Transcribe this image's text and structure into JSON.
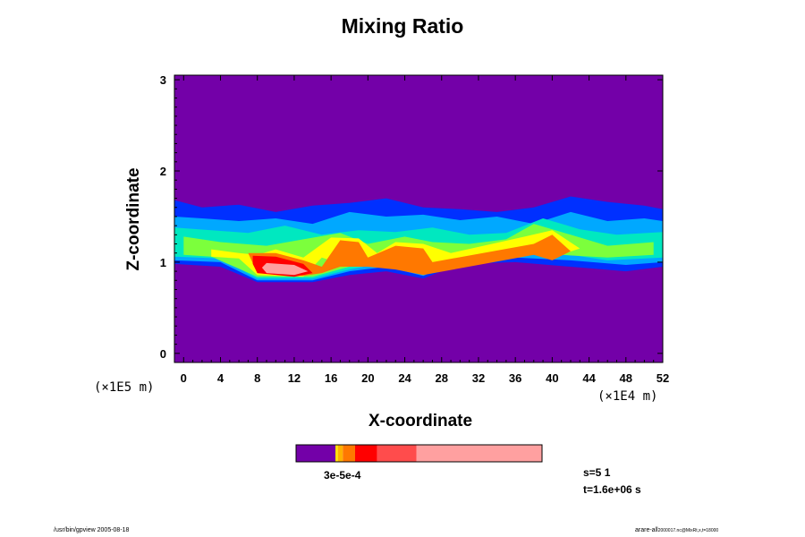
{
  "chart_data": {
    "type": "heatmap",
    "title": "Mixing Ratio",
    "xlabel": "X-coordinate",
    "ylabel": "Z-coordinate",
    "x_unit": "(×1E4 m)",
    "y_unit": "(×1E5 m)",
    "xlim": [
      -1,
      52
    ],
    "ylim": [
      -0.1,
      3.05
    ],
    "x_ticks": [
      "0",
      "4",
      "8",
      "12",
      "16",
      "20",
      "24",
      "28",
      "32",
      "36",
      "40",
      "44",
      "48",
      "52"
    ],
    "y_ticks": [
      "0",
      "1",
      "2",
      "3"
    ],
    "background_color": "#7300a8",
    "grid": false,
    "colorbar": {
      "levels_label": "3e-5e-4",
      "segments": [
        {
          "from": 0.0,
          "to": 0.16,
          "color": "#7300a8"
        },
        {
          "from": 0.16,
          "to": 0.17,
          "color": "#ffe000"
        },
        {
          "from": 0.17,
          "to": 0.19,
          "color": "#ffb000"
        },
        {
          "from": 0.19,
          "to": 0.24,
          "color": "#ff7800"
        },
        {
          "from": 0.24,
          "to": 0.33,
          "color": "#ff0000"
        },
        {
          "from": 0.33,
          "to": 0.49,
          "color": "#ff4c4c"
        },
        {
          "from": 0.49,
          "to": 1.0,
          "color": "#ffa0a0"
        }
      ]
    },
    "bands": [
      {
        "color": "#0030ff",
        "points": [
          [
            -1,
            1.68
          ],
          [
            2,
            1.6
          ],
          [
            6,
            1.63
          ],
          [
            10,
            1.55
          ],
          [
            14,
            1.62
          ],
          [
            18,
            1.65
          ],
          [
            22,
            1.7
          ],
          [
            26,
            1.6
          ],
          [
            30,
            1.58
          ],
          [
            34,
            1.55
          ],
          [
            38,
            1.6
          ],
          [
            42,
            1.72
          ],
          [
            46,
            1.66
          ],
          [
            50,
            1.62
          ],
          [
            52,
            1.58
          ],
          [
            52,
            0.95
          ],
          [
            48,
            0.9
          ],
          [
            42,
            0.95
          ],
          [
            36,
            1.0
          ],
          [
            30,
            0.98
          ],
          [
            26,
            0.82
          ],
          [
            22,
            0.9
          ],
          [
            18,
            0.86
          ],
          [
            14,
            0.78
          ],
          [
            8,
            0.78
          ],
          [
            4,
            0.95
          ],
          [
            -1,
            0.98
          ]
        ]
      },
      {
        "color": "#00a8ff",
        "points": [
          [
            -1,
            1.5
          ],
          [
            2,
            1.48
          ],
          [
            6,
            1.45
          ],
          [
            10,
            1.48
          ],
          [
            14,
            1.42
          ],
          [
            18,
            1.55
          ],
          [
            22,
            1.5
          ],
          [
            26,
            1.52
          ],
          [
            30,
            1.46
          ],
          [
            34,
            1.5
          ],
          [
            38,
            1.42
          ],
          [
            42,
            1.55
          ],
          [
            46,
            1.45
          ],
          [
            50,
            1.48
          ],
          [
            52,
            1.45
          ],
          [
            52,
            1.0
          ],
          [
            48,
            0.97
          ],
          [
            42,
            1.02
          ],
          [
            36,
            1.05
          ],
          [
            30,
            1.02
          ],
          [
            26,
            0.85
          ],
          [
            22,
            0.95
          ],
          [
            18,
            0.9
          ],
          [
            14,
            0.8
          ],
          [
            8,
            0.8
          ],
          [
            4,
            1.0
          ],
          [
            -1,
            1.02
          ]
        ]
      },
      {
        "color": "#00e8c0",
        "points": [
          [
            -1,
            1.38
          ],
          [
            3,
            1.35
          ],
          [
            7,
            1.32
          ],
          [
            11,
            1.4
          ],
          [
            15,
            1.3
          ],
          [
            19,
            1.35
          ],
          [
            23,
            1.33
          ],
          [
            27,
            1.38
          ],
          [
            31,
            1.3
          ],
          [
            35,
            1.32
          ],
          [
            39,
            1.48
          ],
          [
            43,
            1.36
          ],
          [
            47,
            1.3
          ],
          [
            52,
            1.33
          ],
          [
            52,
            1.05
          ],
          [
            46,
            1.02
          ],
          [
            42,
            1.08
          ],
          [
            36,
            1.1
          ],
          [
            30,
            1.08
          ],
          [
            26,
            0.86
          ],
          [
            22,
            1.0
          ],
          [
            18,
            0.92
          ],
          [
            14,
            0.82
          ],
          [
            8,
            0.82
          ],
          [
            4,
            1.04
          ],
          [
            -1,
            1.06
          ]
        ]
      },
      {
        "color": "#7cff3c",
        "points": [
          [
            0,
            1.28
          ],
          [
            4,
            1.22
          ],
          [
            9,
            1.18
          ],
          [
            13,
            1.25
          ],
          [
            17,
            1.32
          ],
          [
            20,
            1.2
          ],
          [
            24,
            1.28
          ],
          [
            27,
            1.22
          ],
          [
            31,
            1.2
          ],
          [
            35,
            1.25
          ],
          [
            38,
            1.42
          ],
          [
            42,
            1.3
          ],
          [
            46,
            1.18
          ],
          [
            51,
            1.22
          ],
          [
            51,
            1.08
          ],
          [
            46,
            1.05
          ],
          [
            41,
            1.08
          ],
          [
            38,
            1.15
          ],
          [
            34,
            1.12
          ],
          [
            30,
            1.1
          ],
          [
            26,
            0.88
          ],
          [
            22,
            1.02
          ],
          [
            18,
            0.95
          ],
          [
            14,
            0.84
          ],
          [
            8,
            0.84
          ],
          [
            3,
            1.06
          ],
          [
            0,
            1.08
          ]
        ]
      },
      {
        "color": "#ffff00",
        "points": [
          [
            3,
            1.14
          ],
          [
            6,
            1.1
          ],
          [
            8,
            1.08
          ],
          [
            10,
            1.14
          ],
          [
            13,
            1.05
          ],
          [
            16,
            1.27
          ],
          [
            19,
            1.26
          ],
          [
            21,
            1.1
          ],
          [
            23,
            1.22
          ],
          [
            26,
            1.2
          ],
          [
            29,
            1.1
          ],
          [
            37,
            1.28
          ],
          [
            40,
            1.35
          ],
          [
            43,
            1.15
          ],
          [
            40,
            1.05
          ],
          [
            37,
            1.12
          ],
          [
            29,
            1.02
          ],
          [
            26,
            0.86
          ],
          [
            23,
            0.95
          ],
          [
            20,
            0.98
          ],
          [
            18,
            0.95
          ],
          [
            15,
            1.05
          ],
          [
            13,
            0.84
          ],
          [
            8,
            0.86
          ],
          [
            6,
            1.04
          ],
          [
            3,
            1.06
          ]
        ]
      },
      {
        "color": "#ff7800",
        "points": [
          [
            7,
            1.1
          ],
          [
            10,
            1.1
          ],
          [
            13,
            1.02
          ],
          [
            15,
            0.95
          ],
          [
            17,
            1.24
          ],
          [
            19,
            1.22
          ],
          [
            20,
            1.05
          ],
          [
            23,
            1.18
          ],
          [
            26,
            1.15
          ],
          [
            27,
            1.0
          ],
          [
            38,
            1.2
          ],
          [
            40,
            1.3
          ],
          [
            42,
            1.12
          ],
          [
            40,
            1.02
          ],
          [
            38,
            1.08
          ],
          [
            26,
            0.86
          ],
          [
            23,
            0.92
          ],
          [
            20,
            0.95
          ],
          [
            17,
            0.95
          ],
          [
            15,
            0.88
          ],
          [
            13,
            0.85
          ],
          [
            8,
            0.88
          ]
        ]
      },
      {
        "color": "#ff0000",
        "points": [
          [
            7.5,
            1.07
          ],
          [
            10,
            1.06
          ],
          [
            13,
            0.98
          ],
          [
            14,
            0.88
          ],
          [
            12,
            0.84
          ],
          [
            8,
            0.88
          ],
          [
            7.5,
            0.98
          ]
        ]
      },
      {
        "color": "#ffa0a0",
        "points": [
          [
            9,
            0.99
          ],
          [
            12,
            0.97
          ],
          [
            13.5,
            0.9
          ],
          [
            12,
            0.86
          ],
          [
            9,
            0.88
          ],
          [
            8.5,
            0.94
          ]
        ]
      }
    ]
  },
  "footer": {
    "left": "/usr/bin/gpview 2005-08-18",
    "right": "arare-all",
    "right_sub": "2000017.nc@MixRt,x,t=18000"
  },
  "info": {
    "line1": "s=5 1",
    "line2": "t=1.6e+06 s"
  }
}
